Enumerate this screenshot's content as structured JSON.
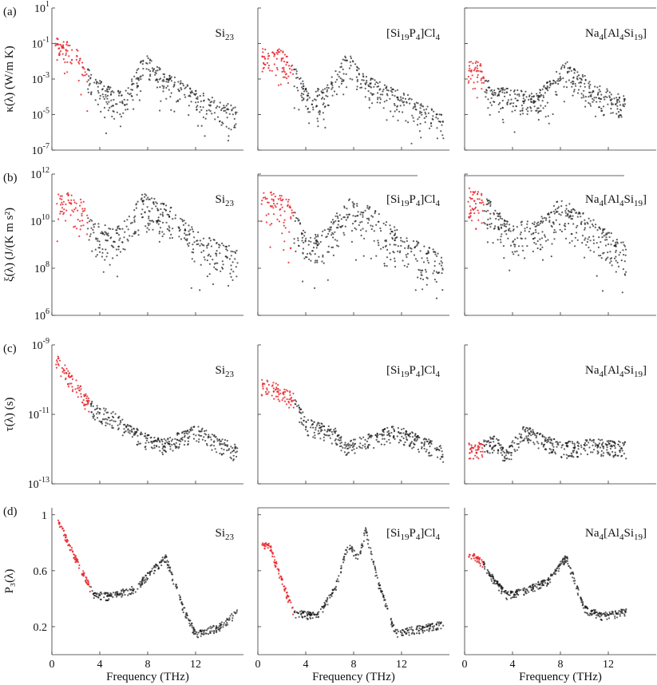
{
  "figure": {
    "xlabel": "Frequency (THz)",
    "colors": {
      "low_freq": "#e8262b",
      "main": "#1a1a1a",
      "axis": "#333333"
    }
  },
  "chart_data": [
    {
      "type": "scatter",
      "row": "(a)",
      "ylabel": "κ(λ) (W/m K)",
      "yscale": "log",
      "ylim": [
        1e-07,
        10
      ],
      "yticks": [
        {
          "exp": "1"
        },
        {
          "exp": "-1"
        },
        {
          "exp": "-3"
        },
        {
          "exp": "-5"
        },
        {
          "exp": "-7"
        }
      ],
      "panels": [
        {
          "material": "Si23",
          "xlim": [
            0,
            16
          ],
          "red_max_x": 3.0,
          "red_y": [
            -2.0,
            -0.3
          ],
          "ref_points": [
            [
              1.0,
              -0.7
            ],
            [
              2.0,
              -1.2
            ],
            [
              3.2,
              -2.6
            ],
            [
              4.5,
              -3.3
            ],
            [
              6.0,
              -3.8
            ],
            [
              7.8,
              -1.5
            ],
            [
              9.5,
              -2.6
            ],
            [
              12.0,
              -3.6
            ],
            [
              15.5,
              -4.6
            ]
          ]
        },
        {
          "material": "[Si19P4]Cl4",
          "xlim": [
            0,
            16
          ],
          "red_max_x": 3.0,
          "red_y": [
            -3.0,
            -1.0
          ],
          "ref_points": [
            [
              2.0,
              -1.3
            ],
            [
              3.2,
              -2.4
            ],
            [
              4.2,
              -3.6
            ],
            [
              5.5,
              -3.5
            ],
            [
              7.5,
              -1.5
            ],
            [
              9.0,
              -2.8
            ],
            [
              12.0,
              -3.7
            ],
            [
              15.5,
              -5.0
            ]
          ]
        },
        {
          "material": "Na4[Al4Si19]",
          "xlim": [
            0,
            16
          ],
          "red_max_x": 1.7,
          "red_y": [
            -3.3,
            -1.4
          ],
          "ref_points": [
            [
              1.2,
              -2.0
            ],
            [
              2.5,
              -3.5
            ],
            [
              4.0,
              -3.5
            ],
            [
              6.0,
              -3.8
            ],
            [
              8.5,
              -2.0
            ],
            [
              11.0,
              -3.3
            ],
            [
              13.5,
              -4.0
            ]
          ]
        }
      ]
    },
    {
      "type": "scatter",
      "row": "(b)",
      "ylabel": "ξ(λ) (J/(K m s²)",
      "yscale": "log",
      "ylim": [
        1000000.0,
        1000000000000.0
      ],
      "yticks": [
        {
          "exp": "12"
        },
        {
          "exp": "10"
        },
        {
          "exp": "8"
        },
        {
          "exp": "6"
        }
      ],
      "panels": [
        {
          "material": "Si23",
          "xlim": [
            0,
            16
          ],
          "red_max_x": 3.0,
          "red_y": [
            9.6,
            11.3
          ],
          "ref_points": [
            [
              1.0,
              11.3
            ],
            [
              2.5,
              11.0
            ],
            [
              4.0,
              9.8
            ],
            [
              6.0,
              10.0
            ],
            [
              7.5,
              11.2
            ],
            [
              9.5,
              10.8
            ],
            [
              12.0,
              9.6
            ],
            [
              15.5,
              8.8
            ]
          ]
        },
        {
          "material": "[Si19P4]Cl4",
          "xlim": [
            0,
            16
          ],
          "red_max_x": 3.0,
          "red_y": [
            9.8,
            11.3
          ],
          "ref_points": [
            [
              1.0,
              11.3
            ],
            [
              2.5,
              11.0
            ],
            [
              4.0,
              9.5
            ],
            [
              5.5,
              9.6
            ],
            [
              7.5,
              11.0
            ],
            [
              9.5,
              10.6
            ],
            [
              12.0,
              9.5
            ],
            [
              15.5,
              8.6
            ]
          ]
        },
        {
          "material": "Na4[Al4Si19]",
          "xlim": [
            0,
            16
          ],
          "red_max_x": 1.6,
          "red_y": [
            9.8,
            11.6
          ],
          "ref_points": [
            [
              1.0,
              11.4
            ],
            [
              2.0,
              11.0
            ],
            [
              3.5,
              10.0
            ],
            [
              6.0,
              10.0
            ],
            [
              8.0,
              11.0
            ],
            [
              11.0,
              10.0
            ],
            [
              13.5,
              9.0
            ]
          ]
        }
      ]
    },
    {
      "type": "scatter",
      "row": "(c)",
      "ylabel": "τ(λ) (s)",
      "yscale": "log",
      "ylim": [
        1e-13,
        1e-09
      ],
      "yticks": [
        {
          "exp": "-9"
        },
        {
          "exp": "-11"
        },
        {
          "exp": "-13"
        }
      ],
      "panels": [
        {
          "material": "Si23",
          "xlim": [
            0,
            16
          ],
          "red_max_x": 3.2,
          "red_y": [
            -10.5,
            -9.5
          ],
          "ref_points": [
            [
              0.5,
              -9.3
            ],
            [
              2.0,
              -10.0
            ],
            [
              3.5,
              -10.7
            ],
            [
              5.0,
              -10.9
            ],
            [
              7.5,
              -11.5
            ],
            [
              9.5,
              -11.7
            ],
            [
              12.0,
              -11.3
            ],
            [
              15.5,
              -11.9
            ]
          ]
        },
        {
          "material": "[Si19P4]Cl4",
          "xlim": [
            0,
            16
          ],
          "red_max_x": 3.0,
          "red_y": [
            -10.5,
            -9.9
          ],
          "ref_points": [
            [
              1.0,
              -10.0
            ],
            [
              3.0,
              -10.4
            ],
            [
              4.0,
              -11.1
            ],
            [
              6.5,
              -11.4
            ],
            [
              7.5,
              -11.8
            ],
            [
              9.5,
              -11.5
            ],
            [
              11.5,
              -11.3
            ],
            [
              15.5,
              -11.9
            ]
          ]
        },
        {
          "material": "Na4[Al4Si19]",
          "xlim": [
            0,
            16
          ],
          "red_max_x": 1.6,
          "red_y": [
            -11.8,
            -10.8
          ],
          "ref_points": [
            [
              1.2,
              -11.8
            ],
            [
              2.5,
              -11.6
            ],
            [
              3.5,
              -12.0
            ],
            [
              5.0,
              -11.3
            ],
            [
              8.0,
              -11.8
            ],
            [
              11.0,
              -11.7
            ],
            [
              13.5,
              -11.8
            ]
          ]
        }
      ]
    },
    {
      "type": "scatter",
      "row": "(d)",
      "ylabel": "P₃(λ)",
      "yscale": "linear",
      "ylim": [
        0.0,
        1.05
      ],
      "yticks": [
        {
          "value": 1.0,
          "label": "1"
        },
        {
          "value": 0.6,
          "label": "0.6"
        },
        {
          "value": 0.2,
          "label": "0.2"
        }
      ],
      "panels": [
        {
          "material": "Si23",
          "xlim": [
            0,
            16
          ],
          "red_max_x": 3.2,
          "red_y": [
            0.45,
            0.95
          ],
          "ref_points": [
            [
              0.5,
              0.98
            ],
            [
              1.5,
              0.8
            ],
            [
              2.5,
              0.62
            ],
            [
              3.5,
              0.45
            ],
            [
              5.0,
              0.44
            ],
            [
              7.0,
              0.5
            ],
            [
              9.5,
              0.72
            ],
            [
              11.0,
              0.35
            ],
            [
              12.0,
              0.17
            ],
            [
              14.0,
              0.22
            ],
            [
              15.5,
              0.33
            ]
          ]
        },
        {
          "material": "[Si19P4]Cl4",
          "xlim": [
            0,
            16
          ],
          "red_max_x": 3.0,
          "red_y": [
            0.3,
            0.8
          ],
          "ref_points": [
            [
              1.0,
              0.8
            ],
            [
              2.0,
              0.55
            ],
            [
              3.0,
              0.32
            ],
            [
              5.0,
              0.3
            ],
            [
              6.5,
              0.5
            ],
            [
              7.5,
              0.8
            ],
            [
              8.5,
              0.72
            ],
            [
              9.0,
              0.92
            ],
            [
              10.0,
              0.55
            ],
            [
              11.5,
              0.18
            ],
            [
              13.0,
              0.2
            ],
            [
              15.5,
              0.24
            ]
          ]
        },
        {
          "material": "Na4[Al4Si19]",
          "xlim": [
            0,
            16
          ],
          "red_max_x": 1.6,
          "red_y": [
            0.62,
            0.75
          ],
          "ref_points": [
            [
              0.8,
              0.72
            ],
            [
              1.5,
              0.68
            ],
            [
              2.5,
              0.55
            ],
            [
              3.5,
              0.45
            ],
            [
              5.0,
              0.48
            ],
            [
              7.0,
              0.55
            ],
            [
              8.5,
              0.72
            ],
            [
              10.0,
              0.35
            ],
            [
              11.5,
              0.3
            ],
            [
              13.5,
              0.33
            ]
          ]
        }
      ]
    }
  ],
  "x_axis": {
    "ticks": [
      {
        "value": 0,
        "label": "0"
      },
      {
        "value": 4,
        "label": "4"
      },
      {
        "value": 8,
        "label": "8"
      },
      {
        "value": 12,
        "label": "12"
      }
    ],
    "label": "Frequency (THz)"
  }
}
